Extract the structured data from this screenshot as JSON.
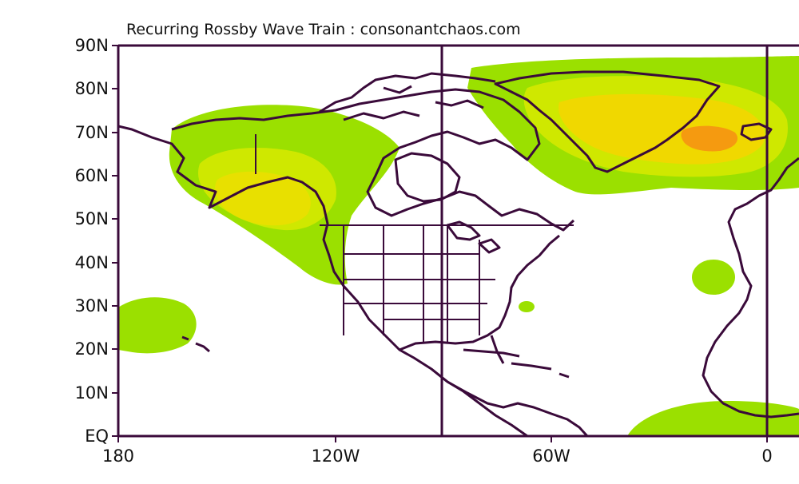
{
  "title": "Recurring Rossby Wave Train : consonantchaos.com",
  "lat_labels": [
    "90N",
    "80N",
    "70N",
    "60N",
    "50N",
    "40N",
    "30N",
    "20N",
    "10N",
    "EQ"
  ],
  "lon_labels": [
    "180",
    "120W",
    "60W",
    "0"
  ],
  "colors": {
    "background": "#ffffff",
    "coastline": "#3a0a3a",
    "frame": "#3a0a3a",
    "shade_light": "#9be000",
    "shade_medium": "#cfe800",
    "shade_high": "#f0d800",
    "shade_peak": "#f59a10"
  },
  "features": [
    "north-america-coastline",
    "greenland-coastline",
    "africa-coastline",
    "positive-anomaly-shading"
  ]
}
